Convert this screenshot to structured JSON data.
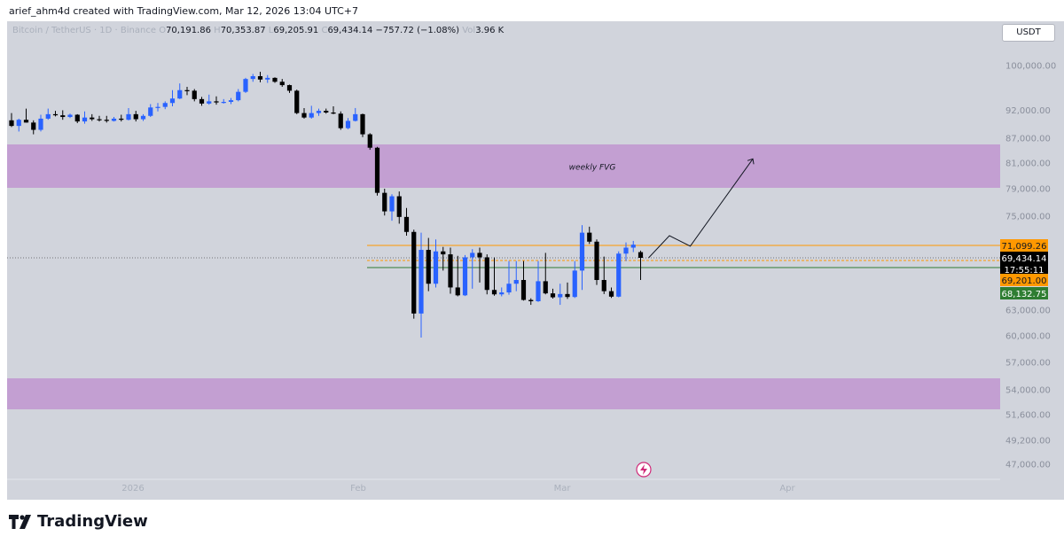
{
  "header": {
    "attribution": "arief_ahm4d created with TradingView.com, Mar 12, 2026 13:04 UTC+7"
  },
  "symbol": {
    "name": "Bitcoin / TetherUS · 1D · Binance",
    "open_label": "O",
    "open": "70,191.86",
    "high_label": "H",
    "high": "70,353.87",
    "low_label": "L",
    "low": "69,205.91",
    "close_label": "C",
    "close": "69,434.14",
    "change": "−757.72 (−1.08%)",
    "volume_label": "Vol",
    "volume": "3.96 K"
  },
  "currency": "USDT",
  "footer": {
    "brand": "TradingView"
  },
  "colors": {
    "bull": "#2962ff",
    "bear": "#000000",
    "zone": "#c39fd2",
    "orange": "#ff9800",
    "green": "#2e7d32",
    "background": "#d1d4dc"
  },
  "chart_data": {
    "type": "candlestick",
    "title": "Bitcoin / TetherUS · 1D · Binance",
    "y_tick_labels": [
      "100,000.00",
      "92,000.00",
      "87,000.00",
      "81,000.00",
      "79,000.00",
      "75,000.00",
      "63,000.00",
      "60,000.00",
      "57,000.00",
      "54,000.00",
      "51,600.00",
      "49,200.00",
      "47,000.00"
    ],
    "x_tick_labels": [
      "2026",
      "Feb",
      "Mar",
      "Apr"
    ],
    "price_markers": [
      {
        "value": "71,099.26",
        "kind": "resistance",
        "color": "#ff9800"
      },
      {
        "value": "69,434.14",
        "kind": "last-price",
        "color": "#000000",
        "sub": "17:55:11"
      },
      {
        "value": "69,201.00",
        "kind": "level",
        "color": "#ff9800"
      },
      {
        "value": "68,132.75",
        "kind": "support",
        "color": "#2e7d32"
      }
    ],
    "zones": [
      {
        "label": "weekly FVG",
        "top": 85000,
        "bottom": 78500
      },
      {
        "label": "",
        "top": 55500,
        "bottom": 52500
      }
    ],
    "projection": [
      [
        69434,
        0
      ],
      [
        72400,
        3
      ],
      [
        71000,
        6
      ],
      [
        82000,
        15
      ]
    ],
    "candles": [
      {
        "o": 90200,
        "h": 91500,
        "l": 89000,
        "c": 89200
      },
      {
        "o": 89200,
        "h": 90500,
        "l": 88200,
        "c": 90300
      },
      {
        "o": 90300,
        "h": 92300,
        "l": 89800,
        "c": 89800
      },
      {
        "o": 89800,
        "h": 90200,
        "l": 87700,
        "c": 88500
      },
      {
        "o": 88500,
        "h": 91200,
        "l": 88200,
        "c": 90500
      },
      {
        "o": 90500,
        "h": 92300,
        "l": 90300,
        "c": 91300
      },
      {
        "o": 91300,
        "h": 91900,
        "l": 90900,
        "c": 91100
      },
      {
        "o": 91100,
        "h": 92000,
        "l": 90300,
        "c": 90800
      },
      {
        "o": 90800,
        "h": 91400,
        "l": 90600,
        "c": 91200
      },
      {
        "o": 91200,
        "h": 91300,
        "l": 89700,
        "c": 90000
      },
      {
        "o": 90000,
        "h": 91800,
        "l": 89600,
        "c": 90700
      },
      {
        "o": 90700,
        "h": 91300,
        "l": 90100,
        "c": 90400
      },
      {
        "o": 90400,
        "h": 91000,
        "l": 90000,
        "c": 90300
      },
      {
        "o": 90300,
        "h": 91000,
        "l": 89800,
        "c": 90100
      },
      {
        "o": 90100,
        "h": 90800,
        "l": 90000,
        "c": 90500
      },
      {
        "o": 90500,
        "h": 91200,
        "l": 90000,
        "c": 90300
      },
      {
        "o": 90300,
        "h": 92400,
        "l": 90200,
        "c": 91300
      },
      {
        "o": 91300,
        "h": 91900,
        "l": 90000,
        "c": 90400
      },
      {
        "o": 90400,
        "h": 91300,
        "l": 90100,
        "c": 91000
      },
      {
        "o": 91000,
        "h": 93100,
        "l": 90800,
        "c": 92500
      },
      {
        "o": 92500,
        "h": 93300,
        "l": 91800,
        "c": 92600
      },
      {
        "o": 92600,
        "h": 93600,
        "l": 92200,
        "c": 93300
      },
      {
        "o": 93300,
        "h": 95600,
        "l": 92700,
        "c": 94100
      },
      {
        "o": 94100,
        "h": 96800,
        "l": 94000,
        "c": 95600
      },
      {
        "o": 95600,
        "h": 96200,
        "l": 94700,
        "c": 95500
      },
      {
        "o": 95500,
        "h": 95800,
        "l": 93600,
        "c": 94000
      },
      {
        "o": 94000,
        "h": 94400,
        "l": 92800,
        "c": 93200
      },
      {
        "o": 93200,
        "h": 94800,
        "l": 93000,
        "c": 93600
      },
      {
        "o": 93600,
        "h": 94500,
        "l": 93000,
        "c": 93400
      },
      {
        "o": 93400,
        "h": 94000,
        "l": 93200,
        "c": 93500
      },
      {
        "o": 93500,
        "h": 94200,
        "l": 93100,
        "c": 93800
      },
      {
        "o": 93800,
        "h": 95800,
        "l": 93600,
        "c": 95300
      },
      {
        "o": 95300,
        "h": 97800,
        "l": 95100,
        "c": 97600
      },
      {
        "o": 97600,
        "h": 98500,
        "l": 97100,
        "c": 98100
      },
      {
        "o": 98100,
        "h": 98900,
        "l": 97000,
        "c": 97500
      },
      {
        "o": 97500,
        "h": 98300,
        "l": 96900,
        "c": 97800
      },
      {
        "o": 97800,
        "h": 97900,
        "l": 96900,
        "c": 97100
      },
      {
        "o": 97100,
        "h": 97600,
        "l": 96200,
        "c": 96500
      },
      {
        "o": 96500,
        "h": 96600,
        "l": 95100,
        "c": 95500
      },
      {
        "o": 95500,
        "h": 95700,
        "l": 91300,
        "c": 91500
      },
      {
        "o": 91500,
        "h": 92400,
        "l": 90500,
        "c": 90700
      },
      {
        "o": 90700,
        "h": 92800,
        "l": 90500,
        "c": 91500
      },
      {
        "o": 91500,
        "h": 92300,
        "l": 91000,
        "c": 91900
      },
      {
        "o": 91900,
        "h": 92300,
        "l": 91400,
        "c": 91600
      },
      {
        "o": 91600,
        "h": 92700,
        "l": 91300,
        "c": 91400
      },
      {
        "o": 91400,
        "h": 91800,
        "l": 88500,
        "c": 88800
      },
      {
        "o": 88800,
        "h": 90600,
        "l": 88600,
        "c": 90100
      },
      {
        "o": 90100,
        "h": 92400,
        "l": 90000,
        "c": 91300
      },
      {
        "o": 91300,
        "h": 91400,
        "l": 87200,
        "c": 87700
      },
      {
        "o": 87700,
        "h": 87900,
        "l": 84200,
        "c": 84700
      },
      {
        "o": 84700,
        "h": 84900,
        "l": 78000,
        "c": 78400
      },
      {
        "o": 78400,
        "h": 79000,
        "l": 75100,
        "c": 75700
      },
      {
        "o": 75700,
        "h": 78200,
        "l": 74400,
        "c": 77900
      },
      {
        "o": 77900,
        "h": 78600,
        "l": 74000,
        "c": 74900
      },
      {
        "o": 74900,
        "h": 76200,
        "l": 72400,
        "c": 72900
      },
      {
        "o": 72900,
        "h": 73200,
        "l": 62000,
        "c": 62600
      },
      {
        "o": 62600,
        "h": 72800,
        "l": 59800,
        "c": 70500
      },
      {
        "o": 70500,
        "h": 72100,
        "l": 68300,
        "c": 68900
      },
      {
        "o": 68900,
        "h": 71900,
        "l": 68600,
        "c": 70300
      },
      {
        "o": 70300,
        "h": 70900,
        "l": 69300,
        "c": 69900
      },
      {
        "o": 69900,
        "h": 70800,
        "l": 68000,
        "c": 68600
      },
      {
        "o": 68600,
        "h": 69700,
        "l": 67200,
        "c": 67500
      },
      {
        "o": 67500,
        "h": 69800,
        "l": 67300,
        "c": 69500
      },
      {
        "o": 69500,
        "h": 70600,
        "l": 68500,
        "c": 70100
      },
      {
        "o": 70100,
        "h": 70800,
        "l": 69000,
        "c": 69500
      },
      {
        "o": 69500,
        "h": 69900,
        "l": 67800,
        "c": 68400
      },
      {
        "o": 68400,
        "h": 69500,
        "l": 67400,
        "c": 67800
      },
      {
        "o": 67800,
        "h": 68600,
        "l": 67200,
        "c": 68200
      },
      {
        "o": 68200,
        "h": 69400,
        "l": 67700,
        "c": 68900
      },
      {
        "o": 68900,
        "h": 69400,
        "l": 68300,
        "c": 69200
      },
      {
        "o": 69200,
        "h": 69400,
        "l": 65900,
        "c": 66100
      },
      {
        "o": 66100,
        "h": 66600,
        "l": 64600,
        "c": 65700
      },
      {
        "o": 65700,
        "h": 69400,
        "l": 65500,
        "c": 69100
      },
      {
        "o": 69100,
        "h": 70100,
        "l": 67800,
        "c": 68100
      },
      {
        "o": 68100,
        "h": 68500,
        "l": 66500,
        "c": 66900
      },
      {
        "o": 66900,
        "h": 68900,
        "l": 64600,
        "c": 67900
      },
      {
        "o": 67900,
        "h": 69000,
        "l": 66400,
        "c": 67000
      },
      {
        "o": 67000,
        "h": 69400,
        "l": 66700,
        "c": 69300
      },
      {
        "o": 69300,
        "h": 73800,
        "l": 68400,
        "c": 72800
      },
      {
        "o": 72800,
        "h": 73600,
        "l": 71300,
        "c": 71600
      },
      {
        "o": 71600,
        "h": 71900,
        "l": 68800,
        "c": 69200
      },
      {
        "o": 69200,
        "h": 69600,
        "l": 67900,
        "c": 68300
      },
      {
        "o": 68300,
        "h": 68600,
        "l": 66700,
        "c": 67100
      },
      {
        "o": 67100,
        "h": 70300,
        "l": 66900,
        "c": 70000
      },
      {
        "o": 70000,
        "h": 71500,
        "l": 69400,
        "c": 70800
      },
      {
        "o": 70800,
        "h": 71700,
        "l": 70200,
        "c": 71200
      },
      {
        "o": 70200,
        "h": 70400,
        "l": 69200,
        "c": 69434
      }
    ]
  }
}
